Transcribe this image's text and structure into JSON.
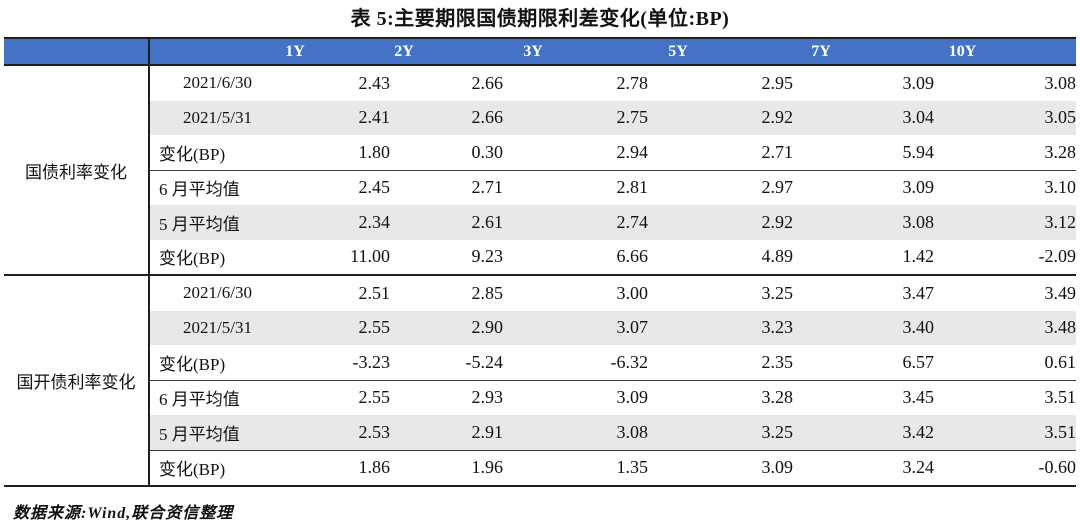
{
  "page": {
    "title": "表 5:主要期限国债期限利差变化(单位:BP)",
    "source_note": "数据来源:Wind,联合资信整理"
  },
  "colors": {
    "header_bg": "#4472C4",
    "header_text": "#FFFFFF",
    "row_alt_bg": "#E8E8E8",
    "border_dark": "#1F1F1F"
  },
  "chart_data": {
    "type": "table",
    "columns": [
      "1Y",
      "2Y",
      "3Y",
      "5Y",
      "7Y",
      "10Y"
    ],
    "groups": [
      {
        "label": "国债利率变化",
        "rows": [
          {
            "label": "2021/6/30",
            "align": "center",
            "rule_below": false,
            "values": [
              "2.43",
              "2.66",
              "2.78",
              "2.95",
              "3.09",
              "3.08"
            ]
          },
          {
            "label": "2021/5/31",
            "align": "center",
            "rule_below": false,
            "values": [
              "2.41",
              "2.66",
              "2.75",
              "2.92",
              "3.04",
              "3.05"
            ]
          },
          {
            "label": "变化(BP)",
            "align": "left",
            "rule_below": true,
            "values": [
              "1.80",
              "0.30",
              "2.94",
              "2.71",
              "5.94",
              "3.28"
            ]
          },
          {
            "label": "6 月平均值",
            "align": "left",
            "rule_below": false,
            "values": [
              "2.45",
              "2.71",
              "2.81",
              "2.97",
              "3.09",
              "3.10"
            ]
          },
          {
            "label": "5 月平均值",
            "align": "left",
            "rule_below": false,
            "values": [
              "2.34",
              "2.61",
              "2.74",
              "2.92",
              "3.08",
              "3.12"
            ]
          },
          {
            "label": "变化(BP)",
            "align": "left",
            "rule_below": false,
            "values": [
              "11.00",
              "9.23",
              "6.66",
              "4.89",
              "1.42",
              "-2.09"
            ]
          }
        ]
      },
      {
        "label": "国开债利率变化",
        "rows": [
          {
            "label": "2021/6/30",
            "align": "center",
            "rule_below": false,
            "values": [
              "2.51",
              "2.85",
              "3.00",
              "3.25",
              "3.47",
              "3.49"
            ]
          },
          {
            "label": "2021/5/31",
            "align": "center",
            "rule_below": false,
            "values": [
              "2.55",
              "2.90",
              "3.07",
              "3.23",
              "3.40",
              "3.48"
            ]
          },
          {
            "label": "变化(BP)",
            "align": "left",
            "rule_below": true,
            "values": [
              "-3.23",
              "-5.24",
              "-6.32",
              "2.35",
              "6.57",
              "0.61"
            ]
          },
          {
            "label": "6 月平均值",
            "align": "left",
            "rule_below": false,
            "values": [
              "2.55",
              "2.93",
              "3.09",
              "3.28",
              "3.45",
              "3.51"
            ]
          },
          {
            "label": "5 月平均值",
            "align": "left",
            "rule_below": true,
            "values": [
              "2.53",
              "2.91",
              "3.08",
              "3.25",
              "3.42",
              "3.51"
            ]
          },
          {
            "label": "变化(BP)",
            "align": "left",
            "rule_below": false,
            "values": [
              "1.86",
              "1.96",
              "1.35",
              "3.09",
              "3.24",
              "-0.60"
            ]
          }
        ]
      }
    ]
  }
}
